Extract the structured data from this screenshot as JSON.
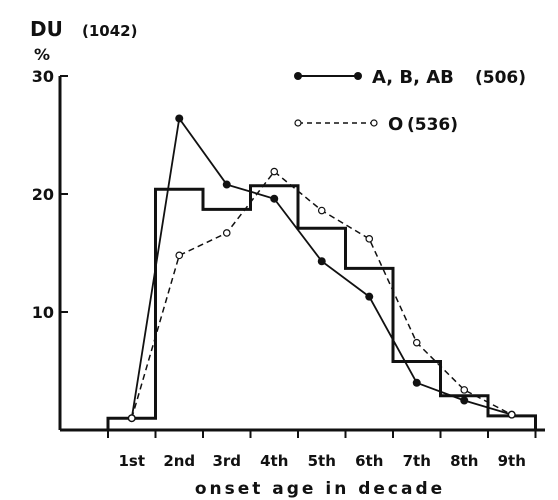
{
  "chart_data": {
    "type": "line",
    "title": "DU",
    "title_count": "(1042)",
    "ylabel": "%",
    "xlabel": "onset age in decade",
    "categories": [
      "1st",
      "2nd",
      "3rd",
      "4th",
      "5th",
      "6th",
      "7th",
      "8th",
      "9th"
    ],
    "ylim": [
      0,
      30
    ],
    "yticks": [
      "10",
      "20",
      "30"
    ],
    "grid": false,
    "legend_position": "top-right",
    "histogram": {
      "label": "",
      "values": [
        1.0,
        20.4,
        18.7,
        20.7,
        17.1,
        13.7,
        5.8,
        2.9,
        1.2
      ]
    },
    "series": [
      {
        "name": "A, B, AB",
        "count": "(506)",
        "style": "solid-filled-dots",
        "values": [
          1.0,
          26.4,
          20.8,
          19.6,
          14.3,
          11.3,
          4.0,
          2.5,
          1.3
        ]
      },
      {
        "name": "O",
        "count": "(536)",
        "style": "dashed-open-circles",
        "values": [
          1.0,
          14.8,
          16.7,
          21.9,
          18.6,
          16.2,
          7.4,
          3.4,
          1.3
        ]
      }
    ],
    "colors": {
      "ink": "#111111",
      "background": "#ffffff"
    }
  }
}
